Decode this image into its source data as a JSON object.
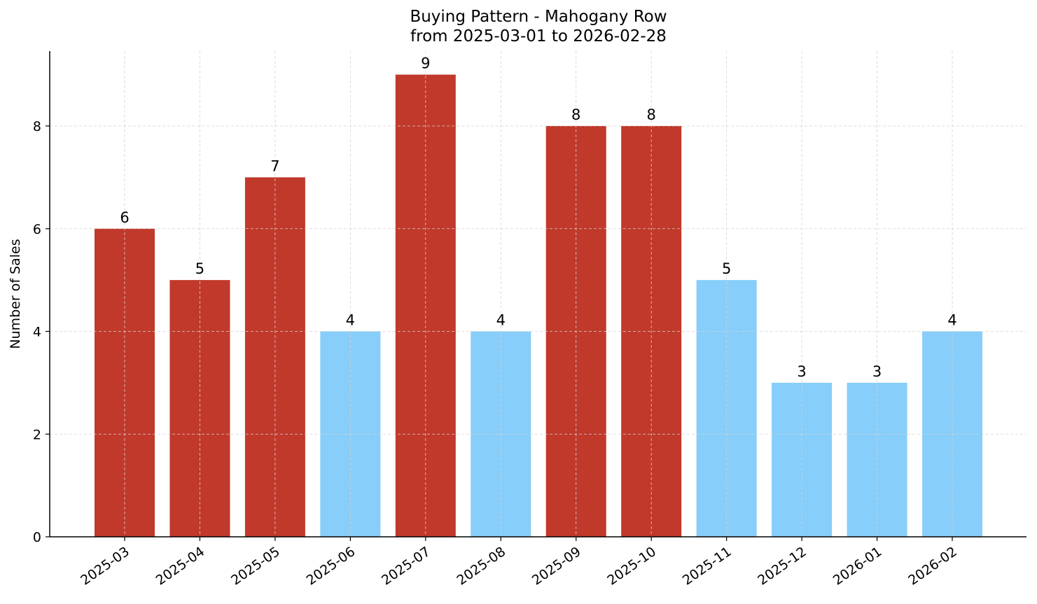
{
  "chart_data": {
    "type": "bar",
    "title": "Buying Pattern - Mahogany Row",
    "subtitle": "from 2025-03-01 to 2026-02-28",
    "xlabel": "",
    "ylabel": "Number of Sales",
    "categories": [
      "2025-03",
      "2025-04",
      "2025-05",
      "2025-06",
      "2025-07",
      "2025-08",
      "2025-09",
      "2025-10",
      "2025-11",
      "2025-12",
      "2026-01",
      "2026-02"
    ],
    "values": [
      6,
      5,
      7,
      4,
      9,
      4,
      8,
      8,
      5,
      3,
      3,
      4
    ],
    "bar_colors": [
      "#c0392b",
      "#c0392b",
      "#c0392b",
      "#87cefa",
      "#c0392b",
      "#87cefa",
      "#c0392b",
      "#c0392b",
      "#87cefa",
      "#87cefa",
      "#87cefa",
      "#87cefa"
    ],
    "ylim": [
      0,
      9.45
    ],
    "yticks": [
      0,
      2,
      4,
      6,
      8
    ],
    "grid": true,
    "legend": null,
    "data_labels": true
  },
  "colors": {
    "high": "#c0392b",
    "low": "#87cefa",
    "grid": "#d3d3d3",
    "axis": "#000000"
  }
}
